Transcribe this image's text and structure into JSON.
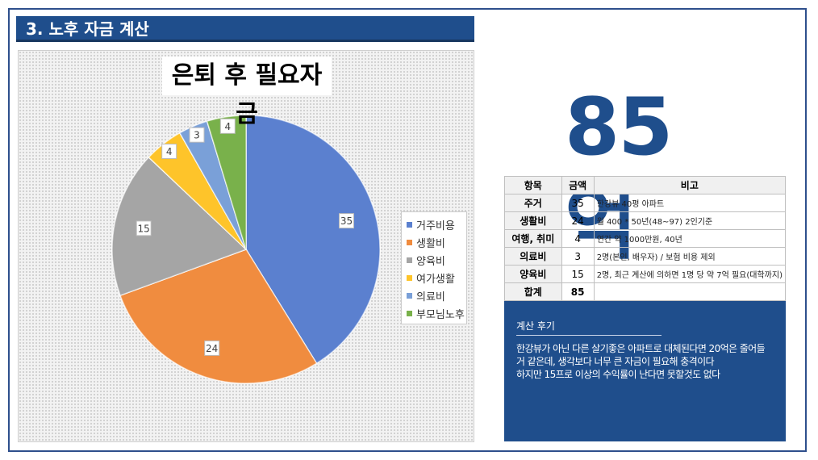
{
  "section": {
    "title": "3. 노후 자금 계산"
  },
  "summary": {
    "total_big": "85억"
  },
  "chart_data": {
    "type": "pie",
    "title": "은퇴 후 필요자금",
    "legend_position": "right",
    "categories": [
      "거주비용",
      "생활비",
      "양육비",
      "여가생활",
      "의료비",
      "부모님노후"
    ],
    "values": [
      35,
      24,
      15,
      4,
      3,
      4
    ],
    "colors": [
      "#5b80cf",
      "#f08c3f",
      "#a5a5a5",
      "#fec42a",
      "#7aa0d8",
      "#79b14b"
    ]
  },
  "table": {
    "headers": [
      "항목",
      "금액",
      "비고"
    ],
    "rows": [
      {
        "item": "주거",
        "amount": "35",
        "note": "한강뷰 40평 아파트"
      },
      {
        "item": "생활비",
        "amount": "24",
        "note": "월 400 * 50년(48~97) 2인기준"
      },
      {
        "item": "여행, 취미",
        "amount": "4",
        "note": "연간 약 1000만원, 40년"
      },
      {
        "item": "의료비",
        "amount": "3",
        "note": "2명(본인, 배우자) / 보험 비용 제외"
      },
      {
        "item": "양육비",
        "amount": "15",
        "note": "2명, 최근 계산에 의하면 1명 당 약 7억 필요(대학까지)"
      }
    ],
    "total": {
      "item": "합계",
      "amount": "85",
      "note": ""
    }
  },
  "review": {
    "title": "계산 후기",
    "lines": [
      "한강뷰가 아닌 다른 살기좋은 아파트로 대체된다면 20억은 줄어들",
      "거 같은데, 생각보다 너무 큰 자금이 필요해 충격이다",
      "하지만 15프로 이상의 수익률이 난다면 못할것도 없다"
    ]
  }
}
